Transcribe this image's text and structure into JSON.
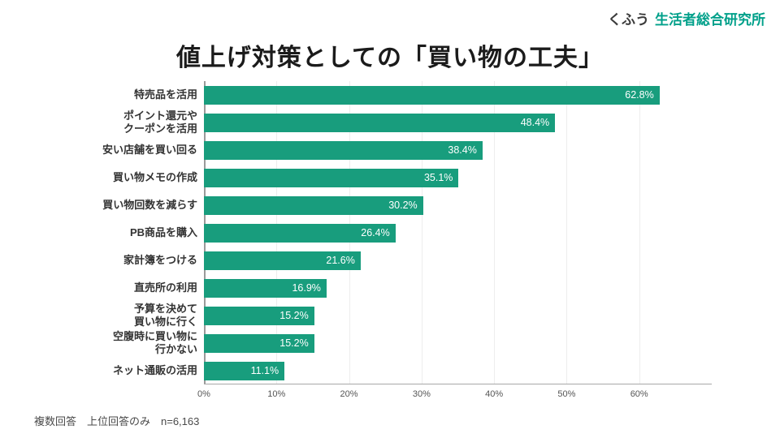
{
  "logo": {
    "prefix": "くふう",
    "name": "生活者総合研究所"
  },
  "title": "値上げ対策としての「買い物の工夫」",
  "footnote": "複数回答　上位回答のみ　n=6,163",
  "colors": {
    "bar": "#189d7d",
    "logo_green": "#00a08a",
    "value_label": "#ffffff"
  },
  "chart_data": {
    "type": "bar",
    "orientation": "horizontal",
    "title": "値上げ対策としての「買い物の工夫」",
    "categories": [
      "特売品を活用",
      "ポイント還元や\nクーポンを活用",
      "安い店舗を買い回る",
      "買い物メモの作成",
      "買い物回数を減らす",
      "PB商品を購入",
      "家計簿をつける",
      "直売所の利用",
      "予算を決めて\n買い物に行く",
      "空腹時に買い物に\n行かない",
      "ネット通販の活用"
    ],
    "values": [
      62.8,
      48.4,
      38.4,
      35.1,
      30.2,
      26.4,
      21.6,
      16.9,
      15.2,
      15.2,
      11.1
    ],
    "value_labels": [
      "62.8%",
      "48.4%",
      "38.4%",
      "35.1%",
      "30.2%",
      "26.4%",
      "21.6%",
      "16.9%",
      "15.2%",
      "15.2%",
      "11.1%"
    ],
    "xlabel": "",
    "ylabel": "",
    "xlim": [
      0,
      70
    ],
    "tick_values": [
      0,
      10,
      20,
      30,
      40,
      50,
      60
    ],
    "ticks": [
      "0%",
      "10%",
      "20%",
      "30%",
      "40%",
      "50%",
      "60%"
    ],
    "grid": true,
    "legend": false
  }
}
